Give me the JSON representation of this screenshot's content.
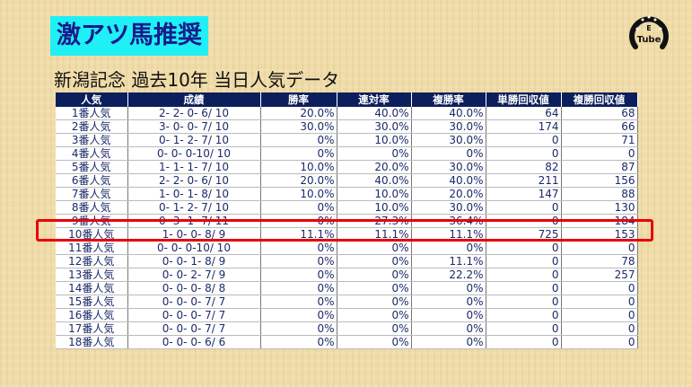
{
  "title": "激アツ馬推奨",
  "subtitle": "新潟記念 過去10年 当日人気データ",
  "logo_text": "Tube",
  "highlight_color": "#e8000a",
  "table": {
    "headers": [
      "人気",
      "成績",
      "勝率",
      "連対率",
      "複勝率",
      "単勝回収値",
      "複勝回収値"
    ],
    "rows": [
      [
        "1番人気",
        "2- 2- 0- 6/ 10",
        "20.0%",
        "40.0%",
        "40.0%",
        "64",
        "68"
      ],
      [
        "2番人気",
        "3- 0- 0- 7/ 10",
        "30.0%",
        "30.0%",
        "30.0%",
        "174",
        "66"
      ],
      [
        "3番人気",
        "0- 1- 2- 7/ 10",
        "0%",
        "10.0%",
        "30.0%",
        "0",
        "71"
      ],
      [
        "4番人気",
        "0- 0- 0-10/ 10",
        "0%",
        "0%",
        "0%",
        "0",
        "0"
      ],
      [
        "5番人気",
        "1- 1- 1- 7/ 10",
        "10.0%",
        "20.0%",
        "30.0%",
        "82",
        "87"
      ],
      [
        "6番人気",
        "2- 2- 0- 6/ 10",
        "20.0%",
        "40.0%",
        "40.0%",
        "211",
        "156"
      ],
      [
        "7番人気",
        "1- 0- 1- 8/ 10",
        "10.0%",
        "10.0%",
        "20.0%",
        "147",
        "88"
      ],
      [
        "8番人気",
        "0- 1- 2- 7/ 10",
        "0%",
        "10.0%",
        "30.0%",
        "0",
        "130"
      ],
      [
        "9番人気",
        "0- 3- 1- 7/ 11",
        "0%",
        "27.3%",
        "36.4%",
        "0",
        "184"
      ],
      [
        "10番人気",
        "1- 0- 0- 8/ 9",
        "11.1%",
        "11.1%",
        "11.1%",
        "725",
        "153"
      ],
      [
        "11番人気",
        "0- 0- 0-10/ 10",
        "0%",
        "0%",
        "0%",
        "0",
        "0"
      ],
      [
        "12番人気",
        "0- 0- 1- 8/ 9",
        "0%",
        "0%",
        "11.1%",
        "0",
        "78"
      ],
      [
        "13番人気",
        "0- 0- 2- 7/ 9",
        "0%",
        "0%",
        "22.2%",
        "0",
        "257"
      ],
      [
        "14番人気",
        "0- 0- 0- 8/ 8",
        "0%",
        "0%",
        "0%",
        "0",
        "0"
      ],
      [
        "15番人気",
        "0- 0- 0- 7/ 7",
        "0%",
        "0%",
        "0%",
        "0",
        "0"
      ],
      [
        "16番人気",
        "0- 0- 0- 7/ 7",
        "0%",
        "0%",
        "0%",
        "0",
        "0"
      ],
      [
        "17番人気",
        "0- 0- 0- 7/ 7",
        "0%",
        "0%",
        "0%",
        "0",
        "0"
      ],
      [
        "18番人気",
        "0- 0- 0- 6/ 6",
        "0%",
        "0%",
        "0%",
        "0",
        "0"
      ]
    ]
  }
}
